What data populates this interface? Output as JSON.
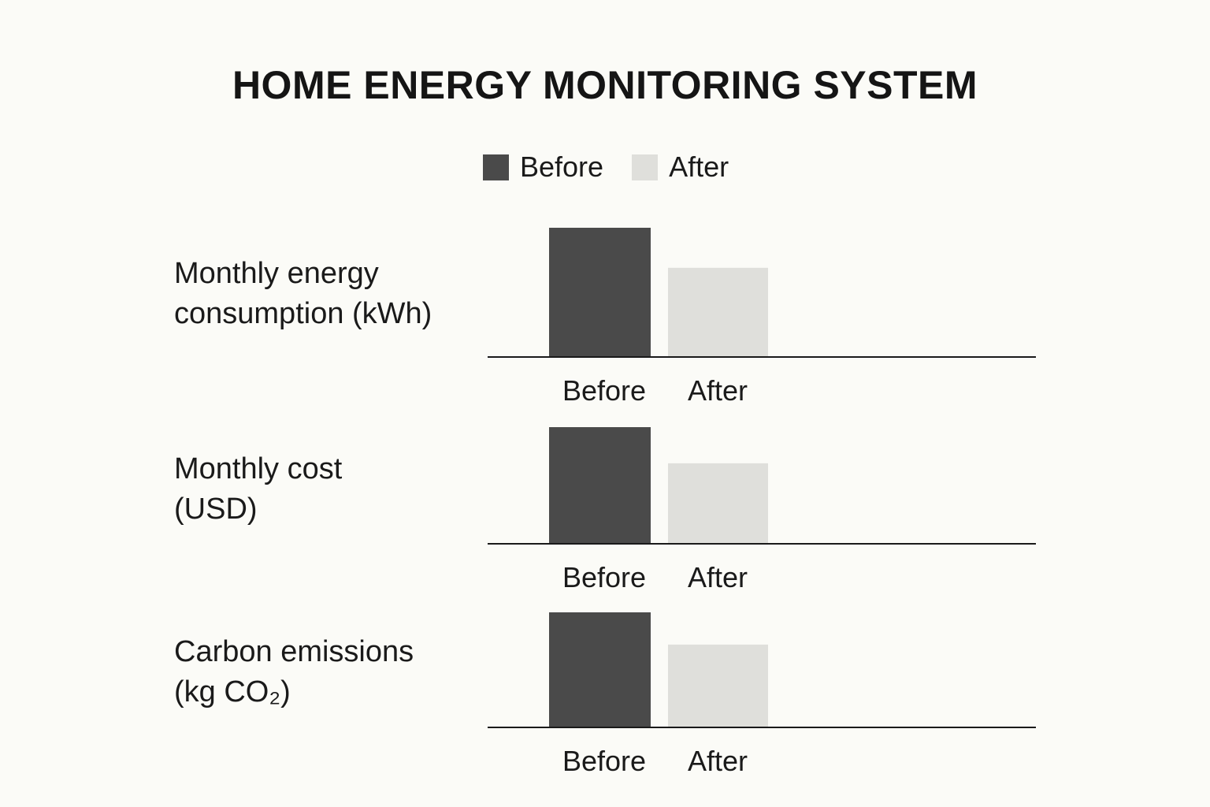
{
  "colors": {
    "before": "#4a4a4a",
    "after": "#dfdfdb",
    "axis": "#1a1a1a",
    "background": "#fbfbf7"
  },
  "legend": [
    {
      "label": "Before",
      "color_key": "before"
    },
    {
      "label": "After",
      "color_key": "after"
    }
  ],
  "chart_data": [
    {
      "type": "bar",
      "title": "HOME ENERGY MONITORING SYSTEM",
      "panel_title_lines": [
        "Monthly energy",
        "consumption (kWh)"
      ],
      "categories": [
        "Before",
        "After"
      ],
      "values": [
        100,
        69
      ],
      "ylim": [
        0,
        100
      ],
      "grid": false,
      "legend_position": "top-center"
    },
    {
      "type": "bar",
      "panel_title_lines": [
        "Monthly cost",
        "(USD)"
      ],
      "categories": [
        "Before",
        "After"
      ],
      "values": [
        100,
        69
      ],
      "ylim": [
        0,
        100
      ],
      "grid": false
    },
    {
      "type": "bar",
      "panel_title_lines": [
        "Carbon emissions",
        "(kg CO₂)"
      ],
      "categories": [
        "Before",
        "After"
      ],
      "values": [
        100,
        72
      ],
      "ylim": [
        0,
        100
      ],
      "grid": false
    }
  ]
}
